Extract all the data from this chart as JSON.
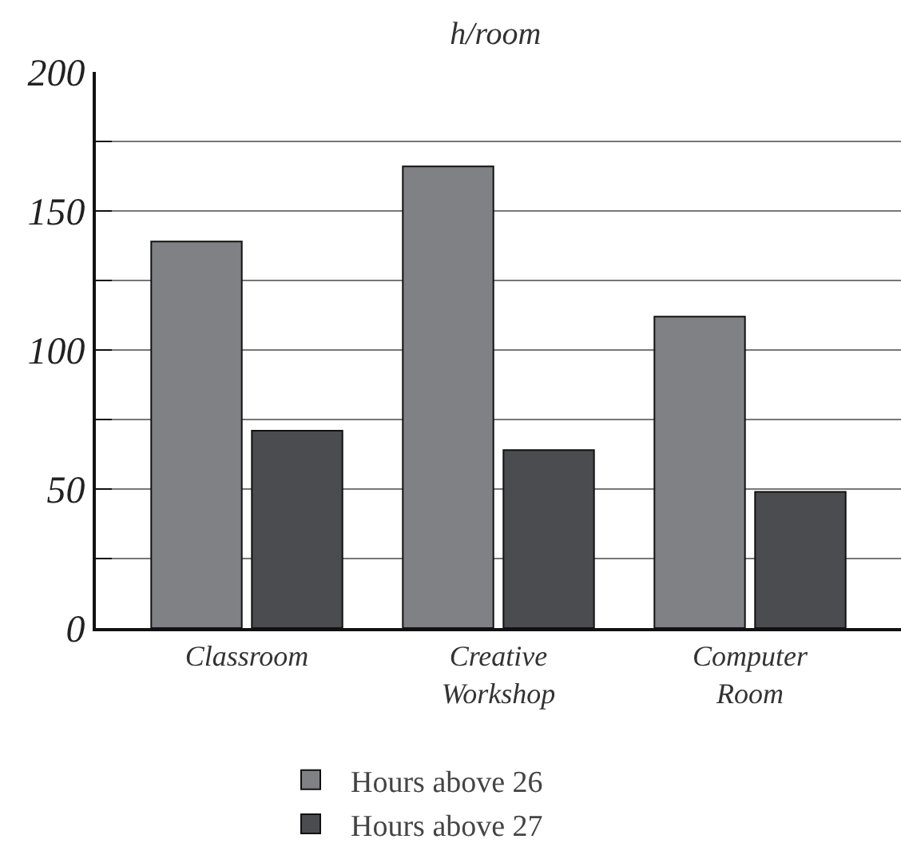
{
  "chart_data": {
    "type": "bar",
    "title": "h/room",
    "categories": [
      "Classroom",
      "Creative\nWorkshop",
      "Computer\nRoom"
    ],
    "series": [
      {
        "name": "Hours above 26",
        "color": "#808185",
        "values": [
          139,
          166,
          112
        ]
      },
      {
        "name": "Hours above 27",
        "color": "#4b4c4f",
        "values": [
          71,
          64,
          49
        ]
      }
    ],
    "ylim": [
      0,
      200
    ],
    "yticks": [
      0,
      {
        "value": 25,
        "label": null
      },
      50,
      {
        "value": 75,
        "label": null
      },
      100,
      {
        "value": 125,
        "label": null
      },
      150,
      {
        "value": 175,
        "label": null
      },
      200
    ],
    "grid": "y",
    "legend": "bottom"
  }
}
